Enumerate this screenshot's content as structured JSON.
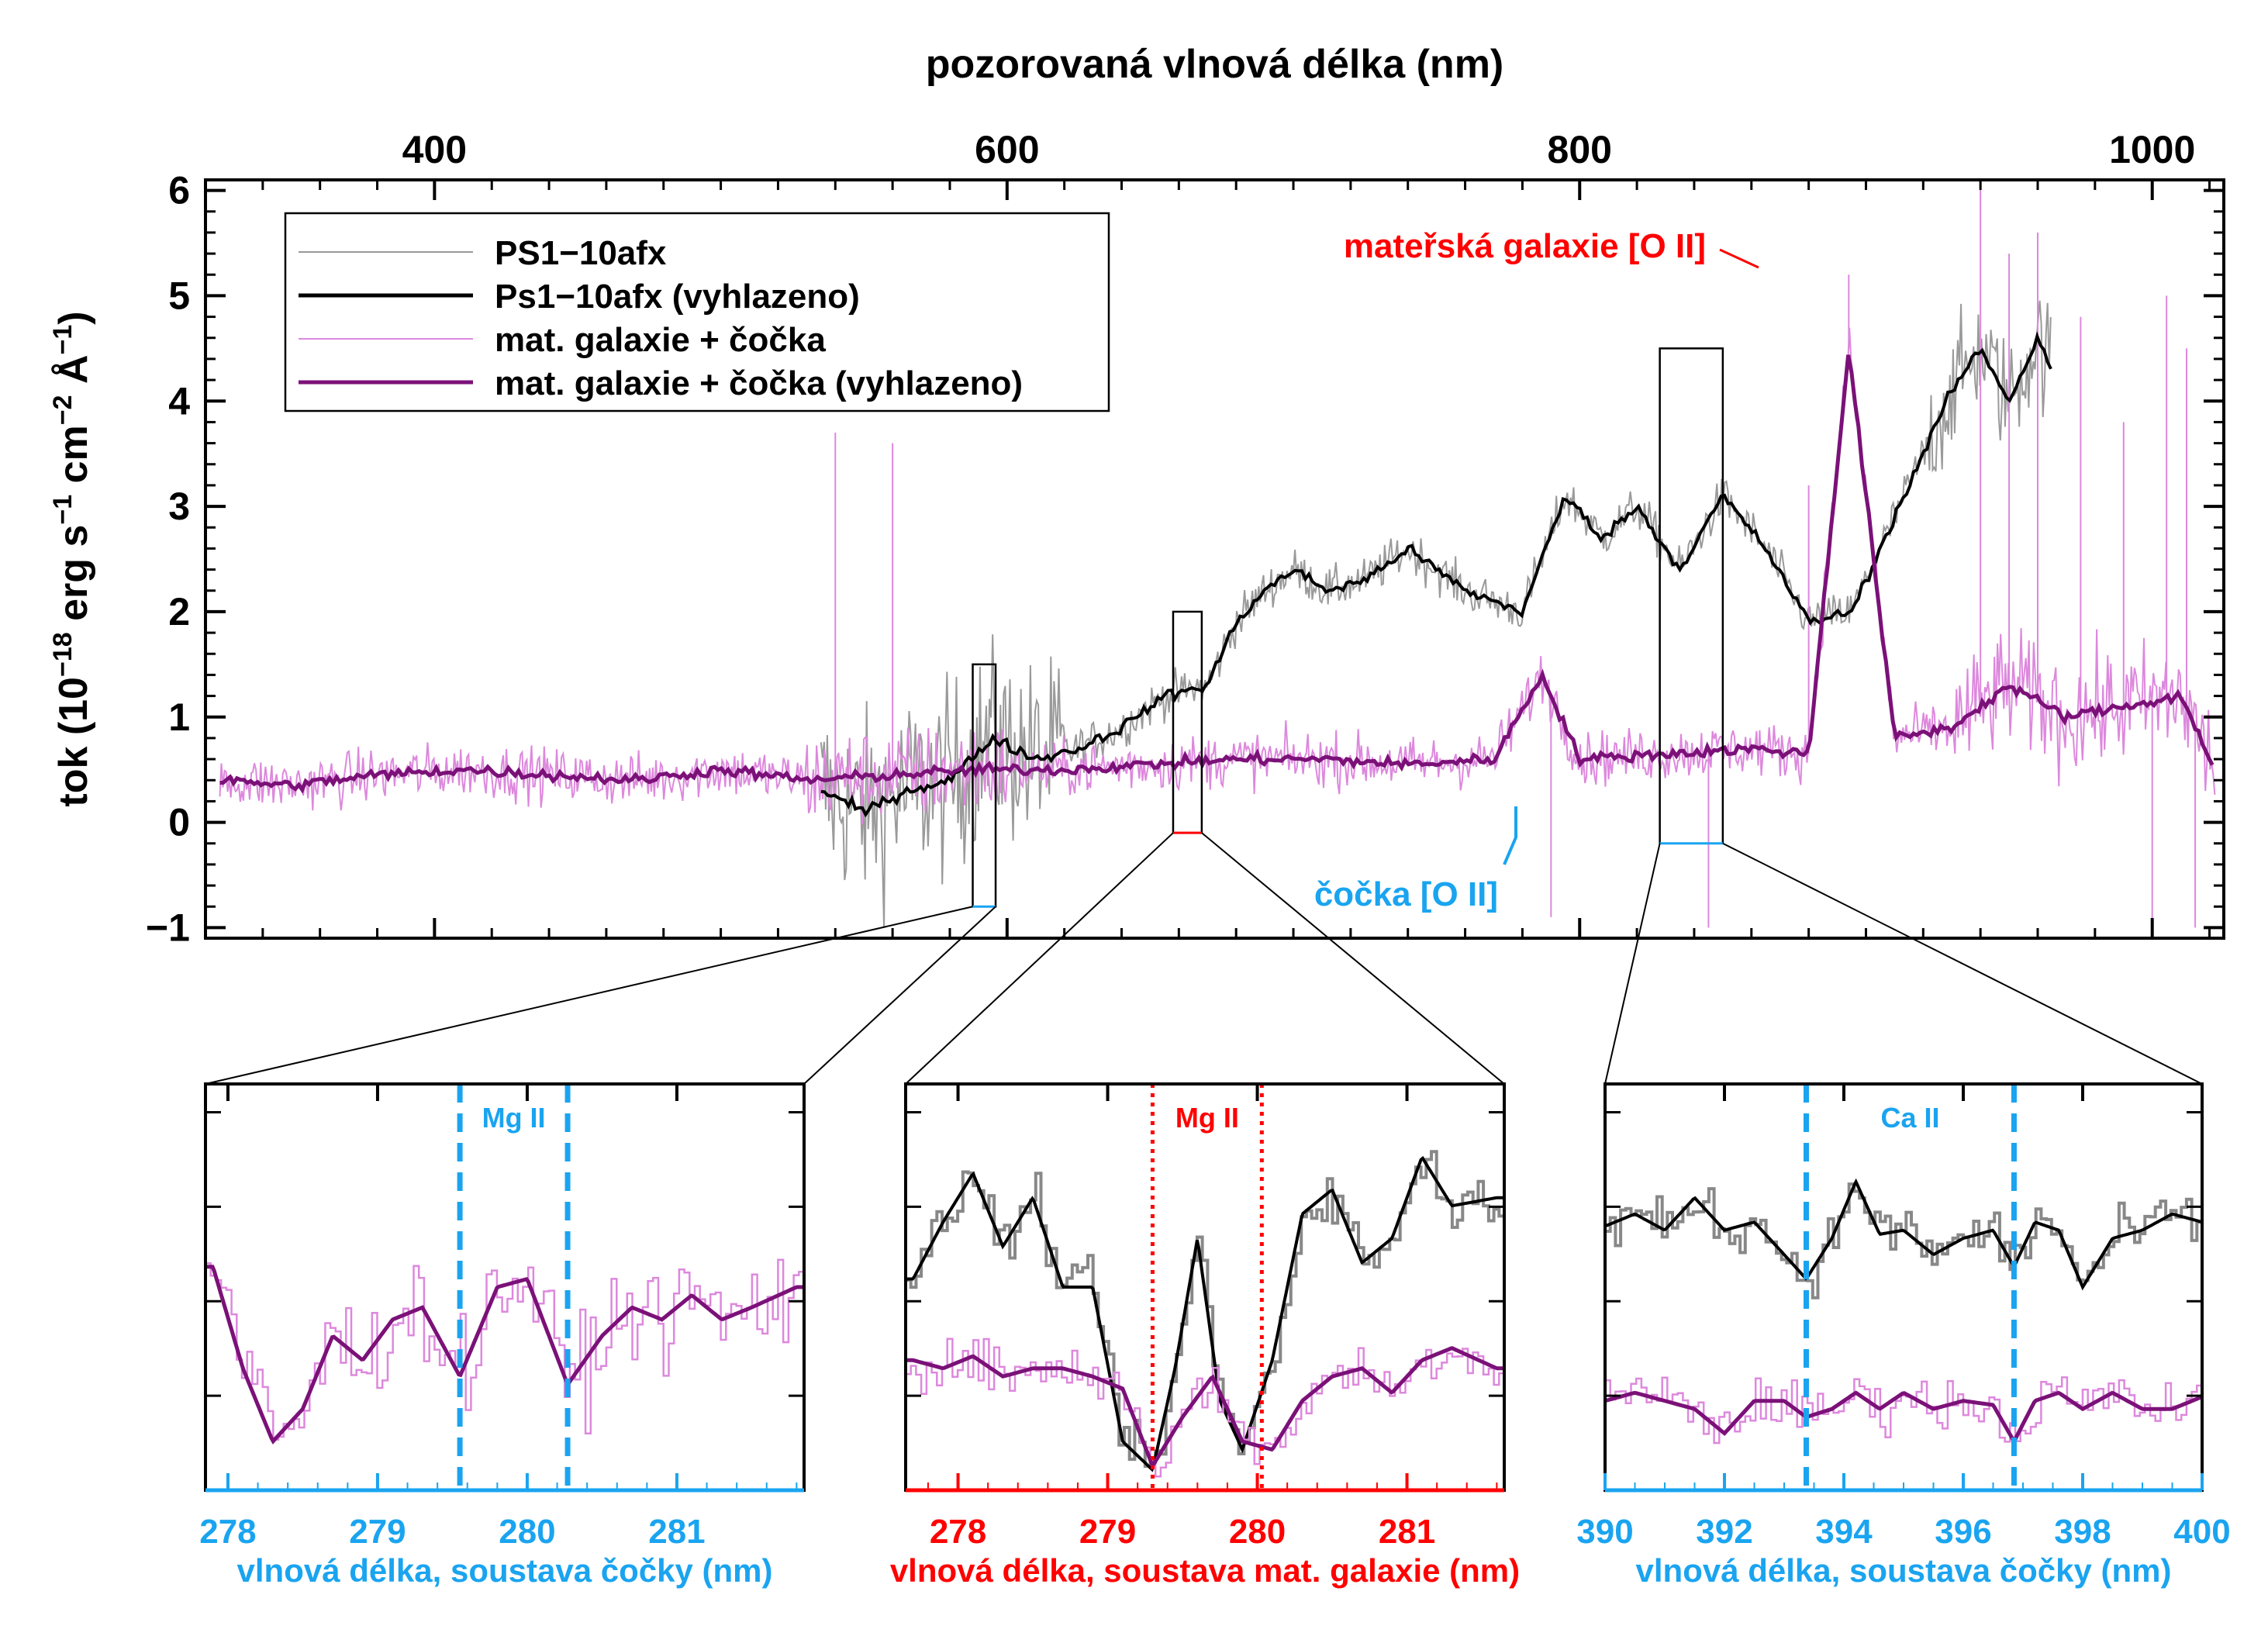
{
  "chart_data": [
    {
      "type": "line",
      "top_xlabel": "pozorovaná vlnová délka (nm)",
      "ylabel": {
        "prefix": "tok (10",
        "exp1": "−18",
        "mid1": " erg s",
        "exp2": "−1",
        "mid2": " cm",
        "exp3": "−2",
        "mid3": " Å",
        "exp4": "−1",
        "suffix": ")"
      },
      "xlim": [
        320,
        1025
      ],
      "ylim": [
        -1.1,
        6.1
      ],
      "x_ticks": [
        400,
        600,
        800,
        1000
      ],
      "y_ticks": [
        -1,
        0,
        1,
        2,
        3,
        4,
        5,
        6
      ],
      "legend": [
        {
          "label": "PS1−10afx",
          "color": "#999999",
          "style": "thin"
        },
        {
          "label": "Ps1−10afx (vyhlazeno)",
          "color": "#000000",
          "style": "thick"
        },
        {
          "label": "mat. galaxie + čočka",
          "color": "#dd88dd",
          "style": "thin"
        },
        {
          "label": "mat. galaxie + čočka (vyhlazeno)",
          "color": "#7b1178",
          "style": "thick"
        }
      ],
      "legend_position": "top-left",
      "annotations": [
        {
          "text": "mateřská galaxie [O II]",
          "color": "#ff0000",
          "x": 894
        },
        {
          "text": "čočka [O II]",
          "color": "#1aa4f0",
          "x": 787
        }
      ],
      "sn_smoothed": {
        "x": [
          535,
          550,
          565,
          580,
          595,
          610,
          625,
          640,
          655,
          670,
          680,
          690,
          700,
          712,
          725,
          740,
          760,
          780,
          795,
          808,
          820,
          835,
          850,
          865,
          880,
          895,
          910,
          920,
          930,
          940,
          950,
          960,
          965
        ],
        "y": [
          0.3,
          0.1,
          0.3,
          0.4,
          0.8,
          0.6,
          0.7,
          0.9,
          1.2,
          1.3,
          1.9,
          2.2,
          2.4,
          2.2,
          2.3,
          2.6,
          2.2,
          2.0,
          3.1,
          2.7,
          3.0,
          2.4,
          3.1,
          2.6,
          1.9,
          2.0,
          2.9,
          3.5,
          4.1,
          4.5,
          4.0,
          4.6,
          4.3
        ]
      },
      "host_smoothed": {
        "x": [
          325,
          350,
          380,
          410,
          440,
          470,
          500,
          530,
          560,
          590,
          620,
          650,
          680,
          710,
          740,
          770,
          787,
          800,
          830,
          860,
          880,
          894,
          910,
          930,
          950,
          970,
          990,
          1010,
          1022
        ],
        "y": [
          0.4,
          0.35,
          0.45,
          0.5,
          0.45,
          0.4,
          0.5,
          0.4,
          0.45,
          0.5,
          0.5,
          0.55,
          0.6,
          0.6,
          0.55,
          0.6,
          1.4,
          0.6,
          0.65,
          0.7,
          0.65,
          4.5,
          0.8,
          0.9,
          1.3,
          1.0,
          1.1,
          1.2,
          0.5
        ]
      },
      "zoom_boxes": [
        {
          "x": [
            588,
            596
          ],
          "y": [
            -0.8,
            1.5
          ]
        },
        {
          "x": [
            658,
            668
          ],
          "y": [
            -0.1,
            2.0
          ]
        },
        {
          "x": [
            828,
            850
          ],
          "y": [
            -0.2,
            4.5
          ]
        }
      ]
    },
    {
      "type": "line",
      "title": "Mg II",
      "xlabel": "vlnová délka, soustava čočky (nm)",
      "color": "#1aa4f0",
      "xlim": [
        277.85,
        281.85
      ],
      "x_ticks": [
        278,
        279,
        280,
        281
      ],
      "lines": [
        279.55,
        280.27
      ],
      "host_smoothed": {
        "x": [
          277.9,
          278.1,
          278.3,
          278.5,
          278.7,
          278.9,
          279.1,
          279.3,
          279.55,
          279.8,
          280.0,
          280.27,
          280.5,
          280.7,
          280.9,
          281.1,
          281.3,
          281.5,
          281.8
        ],
        "y": [
          0.55,
          0.3,
          0.12,
          0.2,
          0.38,
          0.32,
          0.42,
          0.45,
          0.28,
          0.5,
          0.52,
          0.26,
          0.38,
          0.45,
          0.42,
          0.48,
          0.42,
          0.45,
          0.5
        ]
      }
    },
    {
      "type": "line",
      "title": "Mg II",
      "xlabel": "vlnová délka, soustava mat. galaxie (nm)",
      "color": "#ff0000",
      "xlim": [
        277.65,
        281.65
      ],
      "x_ticks": [
        278,
        279,
        280,
        281
      ],
      "lines": [
        279.3,
        280.03
      ],
      "sn_smoothed": {
        "x": [
          277.7,
          277.9,
          278.1,
          278.3,
          278.5,
          278.7,
          278.9,
          279.1,
          279.3,
          279.45,
          279.6,
          279.75,
          279.9,
          280.1,
          280.3,
          280.5,
          280.7,
          280.9,
          281.1,
          281.3,
          281.6
        ],
        "y": [
          0.52,
          0.66,
          0.78,
          0.6,
          0.72,
          0.5,
          0.5,
          0.12,
          0.05,
          0.3,
          0.62,
          0.22,
          0.1,
          0.32,
          0.68,
          0.74,
          0.56,
          0.62,
          0.82,
          0.7,
          0.72
        ]
      },
      "host_smoothed": {
        "x": [
          277.7,
          277.9,
          278.1,
          278.3,
          278.5,
          278.7,
          278.9,
          279.1,
          279.3,
          279.5,
          279.7,
          279.9,
          280.1,
          280.3,
          280.5,
          280.7,
          280.9,
          281.1,
          281.3,
          281.6
        ],
        "y": [
          0.32,
          0.3,
          0.33,
          0.28,
          0.3,
          0.3,
          0.28,
          0.25,
          0.06,
          0.18,
          0.28,
          0.12,
          0.1,
          0.22,
          0.28,
          0.3,
          0.24,
          0.32,
          0.35,
          0.3
        ]
      }
    },
    {
      "type": "line",
      "title": "Ca II",
      "xlabel": "vlnová délka, soustava čočky (nm)",
      "color": "#1aa4f0",
      "xlim": [
        390,
        400
      ],
      "x_ticks": [
        390,
        392,
        394,
        396,
        398,
        400
      ],
      "lines": [
        393.37,
        396.85
      ],
      "sn_smoothed": {
        "x": [
          390.0,
          390.5,
          391.0,
          391.5,
          392.0,
          392.5,
          393.0,
          393.37,
          393.8,
          394.2,
          394.6,
          395.0,
          395.5,
          396.0,
          396.5,
          396.85,
          397.2,
          397.6,
          398.0,
          398.5,
          399.0,
          399.5,
          400.0
        ],
        "y": [
          0.65,
          0.68,
          0.64,
          0.72,
          0.64,
          0.66,
          0.58,
          0.52,
          0.62,
          0.76,
          0.63,
          0.64,
          0.58,
          0.62,
          0.64,
          0.55,
          0.66,
          0.64,
          0.5,
          0.62,
          0.64,
          0.68,
          0.66
        ]
      },
      "host_smoothed": {
        "x": [
          390.0,
          390.5,
          391.0,
          391.5,
          392.0,
          392.5,
          393.0,
          393.37,
          393.8,
          394.2,
          394.6,
          395.0,
          395.5,
          396.0,
          396.5,
          396.85,
          397.2,
          397.6,
          398.0,
          398.5,
          399.0,
          399.5,
          400.0
        ],
        "y": [
          0.22,
          0.24,
          0.22,
          0.2,
          0.14,
          0.22,
          0.22,
          0.18,
          0.2,
          0.24,
          0.2,
          0.24,
          0.2,
          0.22,
          0.21,
          0.12,
          0.22,
          0.24,
          0.2,
          0.24,
          0.2,
          0.2,
          0.23
        ]
      }
    }
  ]
}
